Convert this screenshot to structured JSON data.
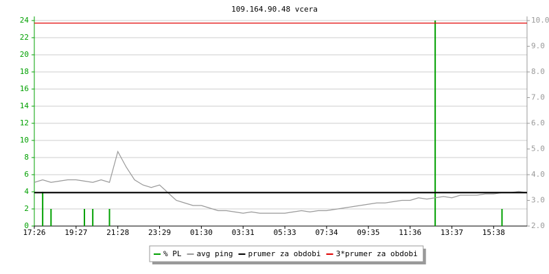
{
  "chart_data": {
    "type": "line",
    "title": "109.164.90.48 vcera",
    "categories": [
      "17:26",
      null,
      null,
      null,
      null,
      "19:27",
      null,
      null,
      null,
      null,
      "21:28",
      null,
      null,
      null,
      null,
      "23:29",
      null,
      null,
      null,
      null,
      "01:30",
      null,
      null,
      null,
      null,
      "03:31",
      null,
      null,
      null,
      null,
      "05:33",
      null,
      null,
      null,
      null,
      "07:34",
      null,
      null,
      null,
      null,
      "09:35",
      null,
      null,
      null,
      null,
      "11:36",
      null,
      null,
      null,
      null,
      "13:37",
      null,
      null,
      null,
      null,
      "15:38",
      null,
      null,
      null,
      null
    ],
    "series": [
      {
        "name": "% PL",
        "color": "#00a000",
        "style": "bars",
        "axis": "y",
        "values": [
          0,
          4,
          2,
          0,
          0,
          0,
          2,
          2,
          0,
          2,
          0,
          0,
          0,
          0,
          0,
          0,
          0,
          0,
          0,
          0,
          0,
          0,
          0,
          0,
          0,
          0,
          0,
          0,
          0,
          0,
          0,
          0,
          0,
          0,
          0,
          0,
          0,
          0,
          0,
          0,
          0,
          0,
          0,
          0,
          0,
          0,
          0,
          0,
          24,
          0,
          0,
          0,
          0,
          0,
          0,
          0,
          2,
          0,
          0,
          0
        ]
      },
      {
        "name": "avg ping",
        "color": "#999999",
        "style": "line",
        "axis": "y2",
        "values": [
          3.7,
          3.8,
          3.7,
          3.75,
          3.8,
          3.8,
          3.75,
          3.7,
          3.8,
          3.7,
          4.9,
          4.3,
          3.8,
          3.6,
          3.5,
          3.6,
          3.3,
          3.0,
          2.9,
          2.8,
          2.8,
          2.7,
          2.6,
          2.6,
          2.55,
          2.5,
          2.55,
          2.5,
          2.5,
          2.5,
          2.5,
          2.55,
          2.6,
          2.55,
          2.6,
          2.6,
          2.65,
          2.7,
          2.75,
          2.8,
          2.85,
          2.9,
          2.9,
          2.95,
          3.0,
          3.0,
          3.1,
          3.05,
          3.1,
          3.15,
          3.1,
          3.2,
          3.2,
          3.2,
          3.25,
          3.25,
          3.3,
          3.3,
          3.35,
          3.3
        ]
      }
    ],
    "reference_lines": [
      {
        "name": "prumer za obdobi",
        "color": "#000000",
        "value": 3.3,
        "axis": "y2"
      },
      {
        "name": "3*prumer za obdobi",
        "color": "#e00000",
        "value": 9.9,
        "axis": "y2"
      }
    ],
    "ylim": [
      0,
      24
    ],
    "yticks": [
      0,
      2,
      4,
      6,
      8,
      10,
      12,
      14,
      16,
      18,
      20,
      22,
      24
    ],
    "y2lim": [
      2,
      10
    ],
    "y2ticks": [
      {
        "value": 2,
        "label": "2.0"
      },
      {
        "value": 3,
        "label": "3.0"
      },
      {
        "value": 4,
        "label": "4.0"
      },
      {
        "value": 5,
        "label": "5.0"
      },
      {
        "value": 6,
        "label": "6.0"
      },
      {
        "value": 7,
        "label": "7.0"
      },
      {
        "value": 8,
        "label": "8.0"
      },
      {
        "value": 9,
        "label": "9.0"
      },
      {
        "value": 10,
        "label": "10.0"
      }
    ],
    "grid": true,
    "legend": "bottom"
  }
}
